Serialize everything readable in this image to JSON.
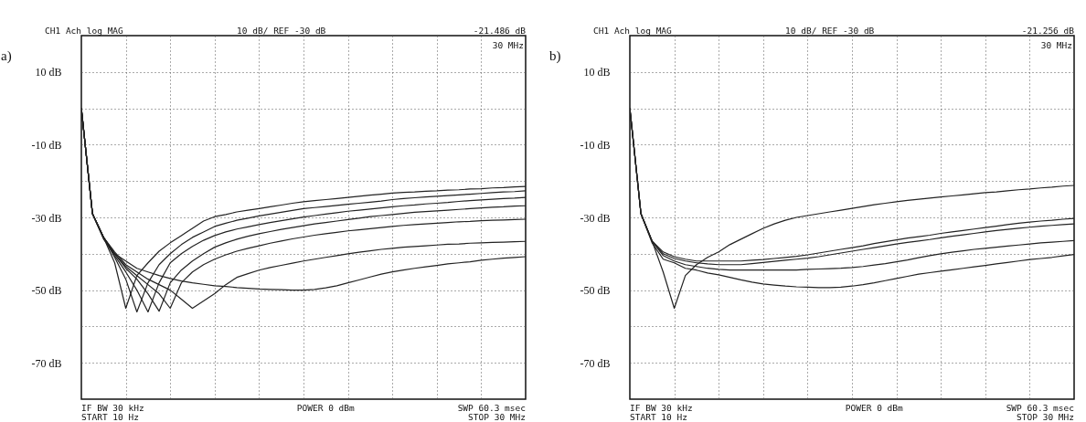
{
  "chart_data": [
    {
      "type": "line",
      "title": "a)",
      "ylim": [
        -80,
        20
      ],
      "categories": [
        null,
        null,
        null,
        null,
        null,
        null,
        null,
        null,
        null,
        null,
        null,
        null,
        null,
        null,
        null,
        null,
        null,
        null,
        null,
        null,
        null,
        null,
        null,
        null,
        null,
        null,
        null,
        null,
        null,
        null,
        null,
        null,
        null,
        null,
        null,
        null,
        null,
        null,
        null,
        null,
        null
      ],
      "yticks": [
        {
          "value": 10,
          "label": "10 dB"
        },
        {
          "value": 0,
          "label": null
        },
        {
          "value": -10,
          "label": "-10 dB"
        },
        {
          "value": -20,
          "label": null
        },
        {
          "value": -30,
          "label": "-30 dB"
        },
        {
          "value": -40,
          "label": null
        },
        {
          "value": -50,
          "label": "-50 dB"
        },
        {
          "value": -60,
          "label": null
        },
        {
          "value": -70,
          "label": "-70 dB"
        }
      ],
      "grid": true,
      "tick_labels": "y",
      "annotations": [
        "CH1 Ach  log MAG",
        "10 dB/ REF -30 dB",
        "-21.486 dB",
        "30 MHz",
        "IF BW 30 kHz",
        "START  10 Hz",
        "POWER  0 dBm",
        "SWP  60.3 msec",
        "STOP  30 MHz"
      ],
      "series": [
        {
          "color": "#222222",
          "values": [
            0,
            -29,
            -35.5,
            -42.5,
            -55,
            -46,
            -42.5,
            -39.3,
            -37,
            -35,
            -33,
            -31,
            -29.8,
            -29.2,
            -28.5,
            -28,
            -27.6,
            -27.1,
            -26.6,
            -26.1,
            -25.7,
            -25.4,
            -25.1,
            -24.8,
            -24.5,
            -24.2,
            -23.9,
            -23.6,
            -23.3,
            -23.1,
            -23,
            -22.8,
            -22.7,
            -22.5,
            -22.4,
            -22.2,
            -22.1,
            -21.9,
            -21.8,
            -21.6,
            -21.5
          ]
        },
        {
          "color": "#222222",
          "values": [
            0,
            -29,
            -35.5,
            -41,
            -47,
            -56,
            -48,
            -43,
            -40,
            -37.5,
            -35.5,
            -34,
            -32.5,
            -31.6,
            -30.8,
            -30.2,
            -29.6,
            -29.1,
            -28.6,
            -28.1,
            -27.6,
            -27.3,
            -27,
            -26.7,
            -26.4,
            -26.1,
            -25.8,
            -25.5,
            -25.1,
            -24.8,
            -24.6,
            -24.4,
            -24.2,
            -24,
            -23.8,
            -23.6,
            -23.4,
            -23.2,
            -23,
            -22.9,
            -22.7
          ]
        },
        {
          "color": "#222222",
          "values": [
            0,
            -29,
            -35.5,
            -40.5,
            -45,
            -50,
            -56,
            -48,
            -42.5,
            -40,
            -38,
            -36.3,
            -35,
            -34,
            -33.2,
            -32.6,
            -32,
            -31.4,
            -30.9,
            -30.4,
            -29.9,
            -29.5,
            -29.1,
            -28.7,
            -28.3,
            -28,
            -27.7,
            -27.4,
            -27.1,
            -26.8,
            -26.6,
            -26.3,
            -26.1,
            -25.9,
            -25.6,
            -25.4,
            -25.2,
            -25,
            -24.8,
            -24.7,
            -24.5
          ]
        },
        {
          "color": "#222222",
          "values": [
            0,
            -29,
            -35.5,
            -40,
            -44,
            -47,
            -51,
            -55.8,
            -48,
            -44.5,
            -42,
            -40,
            -38.2,
            -37,
            -36,
            -35.2,
            -34.5,
            -33.9,
            -33.3,
            -32.8,
            -32.3,
            -31.8,
            -31.4,
            -31,
            -30.6,
            -30.2,
            -29.8,
            -29.5,
            -29.2,
            -28.9,
            -28.6,
            -28.4,
            -28.2,
            -28,
            -27.8,
            -27.6,
            -27.4,
            -27.2,
            -27.1,
            -26.9,
            -26.8
          ]
        },
        {
          "color": "#222222",
          "values": [
            0,
            -29,
            -35.5,
            -40,
            -43.5,
            -46,
            -48.5,
            -51,
            -55,
            -48,
            -45,
            -43,
            -41.5,
            -40.3,
            -39.3,
            -38.5,
            -37.8,
            -37.1,
            -36.5,
            -35.9,
            -35.4,
            -34.9,
            -34.5,
            -34.1,
            -33.7,
            -33.4,
            -33.1,
            -32.8,
            -32.5,
            -32.2,
            -32,
            -31.8,
            -31.6,
            -31.4,
            -31.2,
            -31.1,
            -30.9,
            -30.8,
            -30.7,
            -30.6,
            -30.5
          ]
        },
        {
          "color": "#222222",
          "values": [
            0,
            -29,
            -35.5,
            -39.5,
            -43,
            -45,
            -47,
            -48.5,
            -50,
            -52.5,
            -55,
            -53,
            -51,
            -48.5,
            -46.5,
            -45.5,
            -44.5,
            -43.8,
            -43.2,
            -42.6,
            -42,
            -41.5,
            -41,
            -40.5,
            -40,
            -39.6,
            -39.2,
            -38.8,
            -38.5,
            -38.2,
            -38,
            -37.8,
            -37.6,
            -37.4,
            -37.3,
            -37.1,
            -37,
            -36.9,
            -36.8,
            -36.7,
            -36.6
          ]
        },
        {
          "color": "#222222",
          "values": [
            0,
            -29,
            -36,
            -40,
            -42,
            -44,
            -45,
            -46,
            -46.8,
            -47.5,
            -48,
            -48.4,
            -48.8,
            -49,
            -49.3,
            -49.5,
            -49.7,
            -49.8,
            -49.9,
            -50,
            -50,
            -49.8,
            -49.4,
            -48.8,
            -48,
            -47.2,
            -46.4,
            -45.6,
            -45,
            -44.5,
            -44,
            -43.6,
            -43.2,
            -42.8,
            -42.5,
            -42.2,
            -41.8,
            -41.5,
            -41.2,
            -41,
            -40.8
          ]
        }
      ]
    },
    {
      "type": "line",
      "title": "b)",
      "ylim": [
        -80,
        20
      ],
      "categories": [
        null,
        null,
        null,
        null,
        null,
        null,
        null,
        null,
        null,
        null,
        null,
        null,
        null,
        null,
        null,
        null,
        null,
        null,
        null,
        null,
        null,
        null,
        null,
        null,
        null,
        null,
        null,
        null,
        null,
        null,
        null,
        null,
        null,
        null,
        null,
        null,
        null,
        null,
        null,
        null,
        null
      ],
      "yticks": [
        {
          "value": 10,
          "label": "10 dB"
        },
        {
          "value": 0,
          "label": null
        },
        {
          "value": -10,
          "label": "-10 dB"
        },
        {
          "value": -20,
          "label": null
        },
        {
          "value": -30,
          "label": "-30 dB"
        },
        {
          "value": -40,
          "label": null
        },
        {
          "value": -50,
          "label": "-50 dB"
        },
        {
          "value": -60,
          "label": null
        },
        {
          "value": -70,
          "label": "-70 dB"
        }
      ],
      "grid": true,
      "tick_labels": "y",
      "annotations": [
        "CH1 Ach  log MAG",
        "10 dB/ REF -30 dB",
        "-21.256 dB",
        "30 MHz",
        "IF BW 30 kHz",
        "START  10 Hz",
        "POWER  0 dBm",
        "SWP  60.3 msec",
        "STOP  30 MHz"
      ],
      "series": [
        {
          "color": "#222222",
          "values": [
            0,
            -29,
            -36.5,
            -45,
            -55,
            -46,
            -43,
            -41,
            -39.5,
            -37.5,
            -36,
            -34.5,
            -33,
            -31.8,
            -30.8,
            -30,
            -29.5,
            -29,
            -28.5,
            -28,
            -27.5,
            -27,
            -26.5,
            -26.1,
            -25.7,
            -25.3,
            -25,
            -24.7,
            -24.4,
            -24.1,
            -23.8,
            -23.5,
            -23.2,
            -23,
            -22.7,
            -22.4,
            -22.2,
            -21.9,
            -21.7,
            -21.4,
            -21.2
          ]
        },
        {
          "color": "#222222",
          "values": [
            0,
            -29,
            -36.5,
            -39.5,
            -40.8,
            -41.5,
            -42,
            -42,
            -42,
            -42,
            -42,
            -41.8,
            -41.6,
            -41.3,
            -41,
            -40.7,
            -40.3,
            -39.8,
            -39.3,
            -38.8,
            -38.3,
            -37.8,
            -37.2,
            -36.7,
            -36.2,
            -35.7,
            -35.3,
            -34.9,
            -34.4,
            -34,
            -33.6,
            -33.2,
            -32.8,
            -32.4,
            -32,
            -31.6,
            -31.3,
            -31,
            -30.8,
            -30.5,
            -30.3
          ]
        },
        {
          "color": "#222222",
          "values": [
            0,
            -29,
            -36.5,
            -40,
            -41.3,
            -42,
            -42.5,
            -42.8,
            -43,
            -43,
            -43,
            -42.7,
            -42.4,
            -42.1,
            -41.8,
            -41.5,
            -41.2,
            -40.8,
            -40.3,
            -39.8,
            -39.3,
            -38.8,
            -38.3,
            -37.8,
            -37.3,
            -36.9,
            -36.5,
            -36.1,
            -35.6,
            -35.2,
            -34.8,
            -34.4,
            -34,
            -33.6,
            -33.3,
            -33,
            -32.7,
            -32.4,
            -32.2,
            -32,
            -31.8
          ]
        },
        {
          "color": "#222222",
          "values": [
            0,
            -29,
            -36.5,
            -40.5,
            -42,
            -43,
            -43.5,
            -44,
            -44.3,
            -44.5,
            -44.5,
            -44.5,
            -44.5,
            -44.5,
            -44.5,
            -44.5,
            -44.3,
            -44.2,
            -44.1,
            -44,
            -43.8,
            -43.5,
            -43.1,
            -42.7,
            -42.2,
            -41.7,
            -41.1,
            -40.5,
            -40,
            -39.6,
            -39.2,
            -38.8,
            -38.5,
            -38.2,
            -37.9,
            -37.6,
            -37.3,
            -37,
            -36.8,
            -36.6,
            -36.4
          ]
        },
        {
          "color": "#222222",
          "values": [
            0,
            -29,
            -37,
            -41.5,
            -42.5,
            -44,
            -44.5,
            -45.3,
            -45.8,
            -46.5,
            -47.2,
            -47.8,
            -48.3,
            -48.6,
            -48.9,
            -49.1,
            -49.2,
            -49.3,
            -49.3,
            -49.2,
            -48.9,
            -48.5,
            -48,
            -47.4,
            -46.8,
            -46.2,
            -45.6,
            -45.2,
            -44.8,
            -44.4,
            -44,
            -43.6,
            -43.2,
            -42.8,
            -42.4,
            -42,
            -41.6,
            -41.3,
            -41,
            -40.6,
            -40.2
          ]
        }
      ]
    }
  ]
}
